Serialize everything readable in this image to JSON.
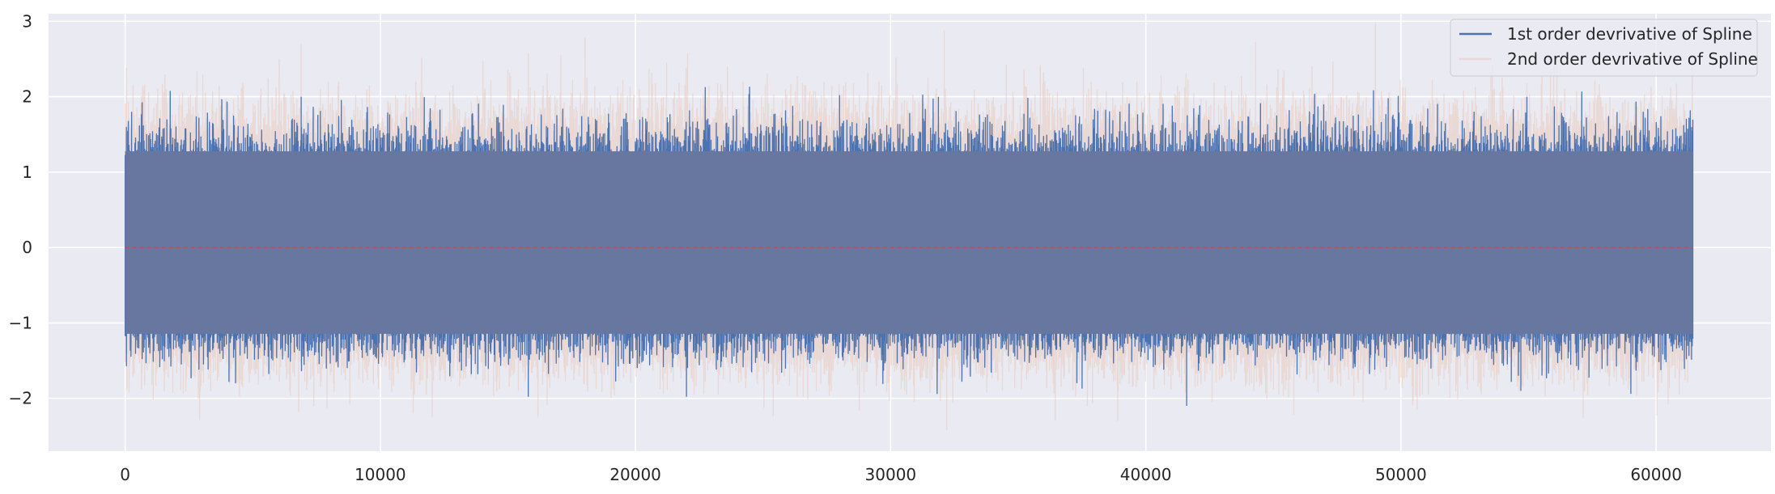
{
  "chart_data": {
    "type": "line",
    "title": "",
    "xlabel": "",
    "ylabel": "",
    "xlim": [
      -3000,
      64500
    ],
    "ylim": [
      -2.7,
      3.1
    ],
    "x_ticks": [
      0,
      10000,
      20000,
      30000,
      40000,
      50000,
      60000
    ],
    "x_tick_labels": [
      "0",
      "10000",
      "20000",
      "30000",
      "40000",
      "50000",
      "60000"
    ],
    "y_ticks": [
      -2,
      -1,
      0,
      1,
      2,
      3
    ],
    "y_tick_labels": [
      "−2",
      "−1",
      "0",
      "1",
      "2",
      "3"
    ],
    "grid": true,
    "legend_position": "top-right",
    "n_points": 61440,
    "series": [
      {
        "name": "2nd order devrivative of Spline",
        "color": "#e8c8bc",
        "opacity": 0.55,
        "x_range": [
          0,
          61440
        ],
        "envelope_typical": [
          -1.6,
          1.8
        ],
        "extremes": [
          {
            "x": 6900,
            "y": 2.7
          },
          {
            "x": 15800,
            "y": 2.58
          },
          {
            "x": 32100,
            "y": 2.88
          },
          {
            "x": 44300,
            "y": 2.73
          },
          {
            "x": 6800,
            "y": -2.18
          },
          {
            "x": 32200,
            "y": -2.42
          },
          {
            "x": 38900,
            "y": -2.3
          },
          {
            "x": 45800,
            "y": -2.22
          }
        ]
      },
      {
        "name": "1st order devrivative of Spline",
        "color": "#4c72b0",
        "opacity": 1.0,
        "x_range": [
          0,
          61440
        ],
        "envelope_typical": [
          -1.3,
          1.45
        ],
        "extremes": [
          {
            "x": 6900,
            "y": 2.0
          },
          {
            "x": 28000,
            "y": 2.02
          },
          {
            "x": 49500,
            "y": 1.98
          },
          {
            "x": 15800,
            "y": -1.98
          },
          {
            "x": 22000,
            "y": -1.98
          },
          {
            "x": 41600,
            "y": -2.1
          },
          {
            "x": 54700,
            "y": -1.9
          }
        ]
      }
    ],
    "reference_line": {
      "y": 0,
      "color": "#c44e52",
      "style": "dashed"
    }
  }
}
